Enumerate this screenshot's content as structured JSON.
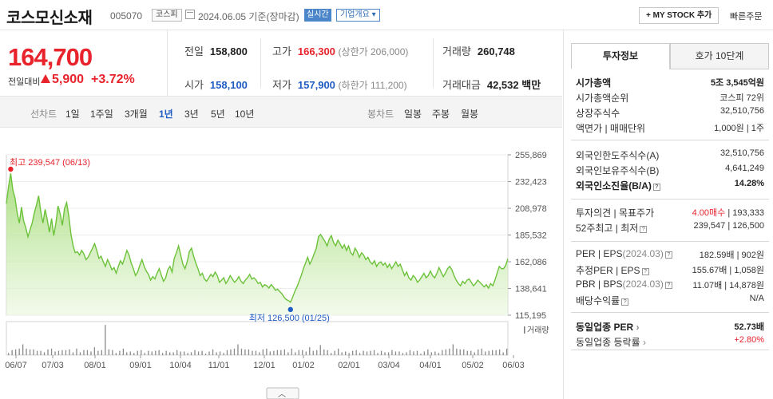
{
  "header": {
    "name": "코스모신소재",
    "code": "005070",
    "market": "코스피",
    "date": "2024.06.05 기준(장마감)",
    "live": "실시간",
    "corp_info": "기업개요",
    "mystock": "+ MY STOCK 추가",
    "quick_order": "빠른주문"
  },
  "quote": {
    "price": "164,700",
    "prev_label": "전일대비",
    "change": "5,900",
    "rate": "+3.72%",
    "prev_close_label": "전일",
    "prev_close": "158,800",
    "high_label": "고가",
    "high": "166,300",
    "upper_limit": "(상한가 206,000)",
    "volume_label": "거래량",
    "volume": "260,748",
    "open_label": "시가",
    "open": "158,100",
    "low_label": "저가",
    "low": "157,900",
    "lower_limit": "(하한가 111,200)",
    "amount_label": "거래대금",
    "amount": "42,532",
    "amount_unit": "백만"
  },
  "toolbar": {
    "line_chart": "선차트",
    "periods": [
      "1일",
      "1주일",
      "3개월",
      "1년",
      "3년",
      "5년",
      "10년"
    ],
    "selected_period": "1년",
    "candle_chart": "봉차트",
    "candle_periods": [
      "일봉",
      "주봉",
      "월봉"
    ]
  },
  "chart_data": {
    "type": "area",
    "y_ticks": [
      "255,869",
      "232,423",
      "208,978",
      "185,532",
      "162,086",
      "138,641",
      "115,195"
    ],
    "ylim": [
      115195,
      255869
    ],
    "x_ticks": [
      "06/07",
      "07/03",
      "08/01",
      "09/01",
      "10/04",
      "11/01",
      "12/01",
      "01/02",
      "02/01",
      "03/04",
      "04/01",
      "05/02",
      "06/03"
    ],
    "max_label": "최고 239,547 (06/13)",
    "min_label": "최저 126,500 (01/25)",
    "volume_label": "거래량",
    "values": [
      213000,
      228000,
      239547,
      225000,
      218000,
      205000,
      196000,
      210000,
      198000,
      192000,
      184000,
      190000,
      196000,
      205000,
      212000,
      220000,
      206000,
      196000,
      208000,
      199000,
      188000,
      200000,
      185000,
      196000,
      211000,
      204000,
      194000,
      209000,
      214000,
      202000,
      186000,
      176000,
      170000,
      171000,
      168000,
      172000,
      169000,
      164000,
      166000,
      170000,
      174000,
      178000,
      172000,
      165000,
      167000,
      162000,
      158000,
      164000,
      160000,
      155000,
      157000,
      152000,
      158000,
      163000,
      160000,
      166000,
      172000,
      168000,
      161000,
      156000,
      150000,
      153000,
      159000,
      164000,
      158000,
      154000,
      151000,
      146000,
      149000,
      147000,
      152000,
      156000,
      150000,
      145000,
      148000,
      155000,
      158000,
      153000,
      165000,
      170000,
      176000,
      168000,
      160000,
      156000,
      162000,
      171000,
      174000,
      167000,
      161000,
      156000,
      150000,
      152000,
      147000,
      145000,
      148000,
      151000,
      149000,
      153000,
      150000,
      144000,
      146000,
      148000,
      143000,
      146000,
      150000,
      147000,
      144000,
      146000,
      149000,
      145000,
      143000,
      146000,
      148000,
      151000,
      147000,
      148000,
      146000,
      143000,
      144000,
      140000,
      142000,
      141000,
      139000,
      142000,
      140000,
      137000,
      138000,
      136000,
      134000,
      131000,
      129000,
      128000,
      126500,
      131000,
      136000,
      140000,
      145000,
      150000,
      156000,
      161000,
      166000,
      160000,
      164000,
      169000,
      174000,
      184000,
      186000,
      183000,
      180000,
      176000,
      182000,
      185000,
      179000,
      176000,
      181000,
      178000,
      174000,
      177000,
      172000,
      176000,
      170000,
      168000,
      174000,
      171000,
      166000,
      170000,
      168000,
      164000,
      166000,
      162000,
      160000,
      163000,
      158000,
      161000,
      162000,
      159000,
      161000,
      157000,
      160000,
      156000,
      159000,
      162000,
      158000,
      160000,
      155000,
      150000,
      153000,
      148000,
      146000,
      150000,
      148000,
      144000,
      146000,
      149000,
      152000,
      148000,
      150000,
      154000,
      150000,
      148000,
      152000,
      157000,
      153000,
      149000,
      152000,
      156000,
      158000,
      155000,
      150000,
      146000,
      143000,
      141000,
      145000,
      143000,
      146000,
      147000,
      144000,
      141000,
      143000,
      146000,
      144000,
      142000,
      140000,
      142000,
      139000,
      143000,
      141000,
      146000,
      152000,
      158000,
      156000,
      156000,
      159000,
      164700
    ]
  },
  "side": {
    "tab_invest": "투자정보",
    "tab_orderbook": "호가 10단계",
    "market_cap_label": "시가총액",
    "market_cap": "5조 3,545억원",
    "rank_label": "시가총액순위",
    "rank": "코스피 72위",
    "shares_label": "상장주식수",
    "shares": "32,510,756",
    "par_label": "액면가 | 매매단위",
    "par": "1,000원 | 1주",
    "foreign_limit_label": "외국인한도주식수(A)",
    "foreign_limit": "32,510,756",
    "foreign_hold_label": "외국인보유주식수(B)",
    "foreign_hold": "4,641,249",
    "foreign_rate_label": "외국인소진율(B/A)",
    "foreign_rate": "14.28%",
    "opinion_label": "투자의견 | 목표주가",
    "opinion": "4.00매수",
    "target": "| 193,333",
    "w52_label": "52주최고 | 최저",
    "w52": "239,547 | 126,500",
    "per_label": "PER | EPS",
    "per_date": "(2024.03)",
    "per": "182.59배 | 902원",
    "est_per_label": "추정PER | EPS",
    "est_per": "155.67배 | 1,058원",
    "pbr_label": "PBR | BPS",
    "pbr_date": "(2024.03)",
    "pbr": "11.07배 | 14,878원",
    "div_label": "배당수익률",
    "div": "N/A",
    "sector_per_label": "동일업종 PER",
    "sector_per": "52.73배",
    "sector_rate_label": "동일업종 등락률",
    "sector_rate": "+2.80%"
  }
}
